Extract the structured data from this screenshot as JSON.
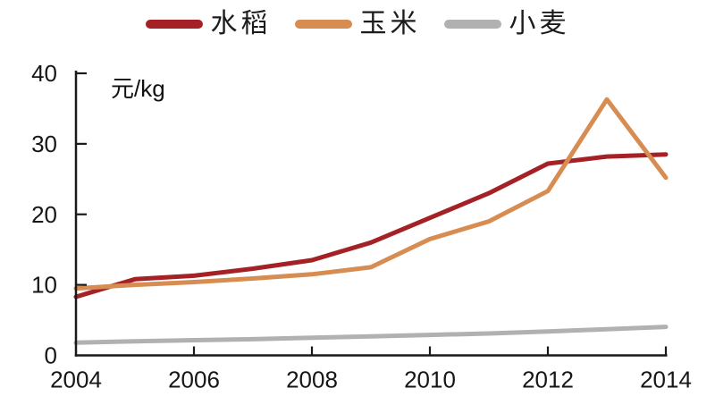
{
  "page": {
    "background": "#ffffff"
  },
  "legend": {
    "items": [
      {
        "label": "水稻",
        "color": "#a42125"
      },
      {
        "label": "玉米",
        "color": "#d78c52"
      },
      {
        "label": "小麦",
        "color": "#b1b1b1"
      }
    ]
  },
  "chart_data": {
    "type": "line",
    "title": "",
    "unit_label": "元/kg",
    "xlabel": "",
    "ylabel": "元/kg",
    "x": [
      2004,
      2005,
      2006,
      2007,
      2008,
      2009,
      2010,
      2011,
      2012,
      2013,
      2014
    ],
    "series": [
      {
        "name": "水稻",
        "color": "#a42125",
        "values": [
          8.3,
          10.8,
          11.3,
          12.3,
          13.5,
          16.0,
          19.5,
          23.0,
          27.2,
          28.2,
          28.5
        ]
      },
      {
        "name": "玉米",
        "color": "#d78c52",
        "values": [
          9.5,
          10.0,
          10.4,
          10.9,
          11.5,
          12.5,
          16.5,
          19.0,
          23.3,
          36.3,
          25.2
        ]
      },
      {
        "name": "小麦",
        "color": "#b1b1b1",
        "values": [
          1.8,
          2.0,
          2.15,
          2.3,
          2.5,
          2.7,
          2.9,
          3.1,
          3.4,
          3.7,
          4.05
        ]
      }
    ],
    "xlim": [
      2004,
      2014
    ],
    "ylim": [
      0,
      40
    ],
    "x_ticks": [
      2004,
      2006,
      2008,
      2010,
      2012,
      2014
    ],
    "y_ticks": [
      0,
      10,
      20,
      30,
      40
    ],
    "grid": false,
    "legend_position": "top-center",
    "axis_color": "#1a1a1a",
    "tick_label_color": "#161616",
    "line_width": 5
  }
}
